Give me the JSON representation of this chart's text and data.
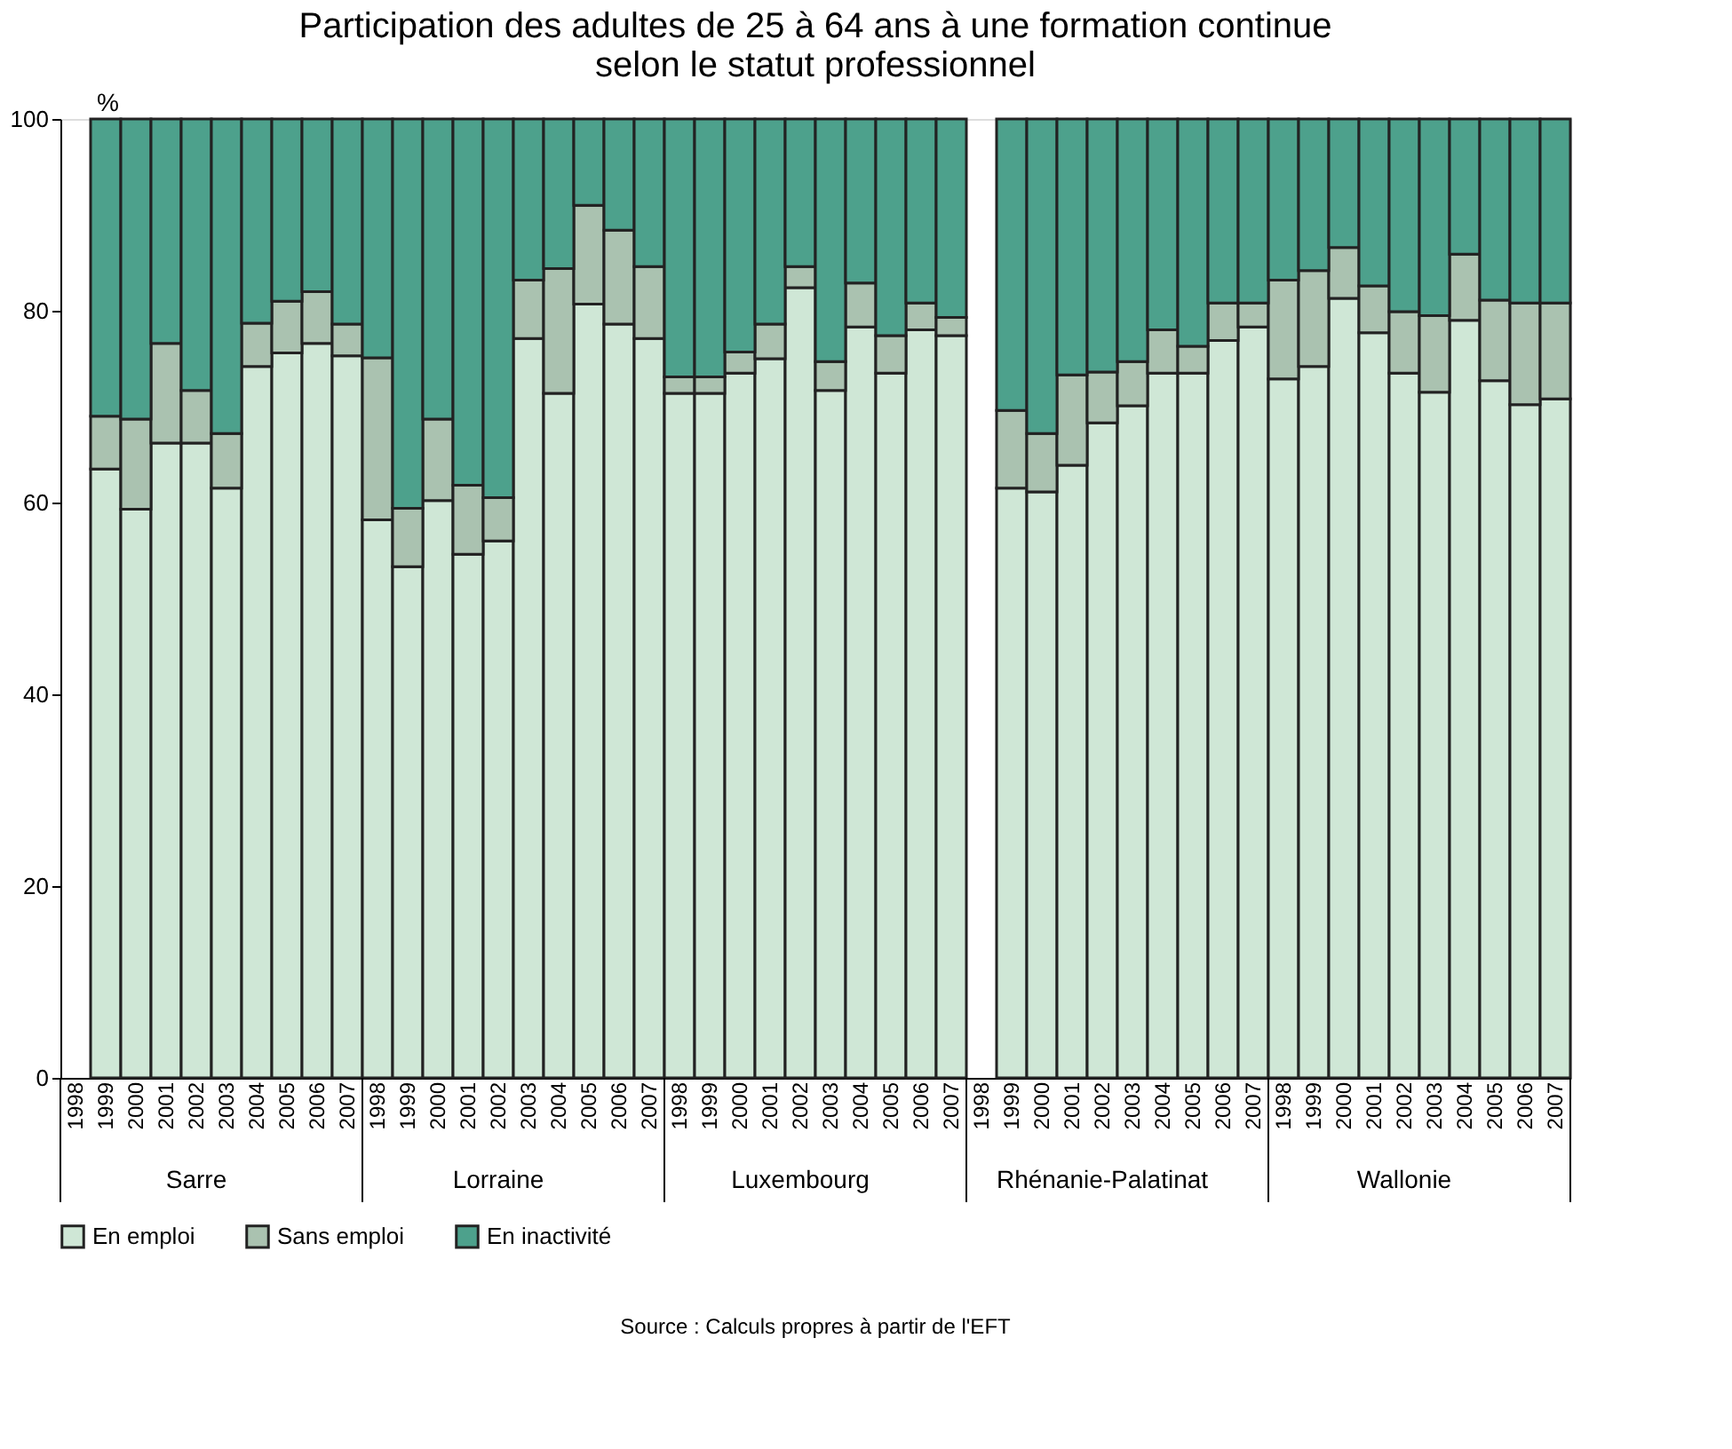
{
  "chart_data": {
    "type": "bar",
    "stacked": true,
    "title": [
      "Participation des adultes de 25 à 64 ans à une formation continue",
      "selon le statut professionnel"
    ],
    "ylabel": "%",
    "categories": [
      "1998",
      "1999",
      "2000",
      "2001",
      "2002",
      "2003",
      "2004",
      "2005",
      "2006",
      "2007",
      "1998",
      "1999",
      "2000",
      "2001",
      "2002",
      "2003",
      "2004",
      "2005",
      "2006",
      "2007",
      "1998",
      "1999",
      "2000",
      "2001",
      "2002",
      "2003",
      "2004",
      "2005",
      "2006",
      "2007",
      "1998",
      "1999",
      "2000",
      "2001",
      "2002",
      "2003",
      "2004",
      "2005",
      "2006",
      "2007",
      "1998",
      "1999",
      "2000",
      "2001",
      "2002",
      "2003",
      "2004",
      "2005",
      "2006",
      "2007"
    ],
    "series": [
      {
        "name": "En emploi",
        "color": "#cfe7d6",
        "values": [
          null,
          63.5,
          59.3,
          66.2,
          66.2,
          61.5,
          74.2,
          75.6,
          76.6,
          75.3,
          58.2,
          53.3,
          60.2,
          54.6,
          56.0,
          77.1,
          71.4,
          80.7,
          78.6,
          77.1,
          71.4,
          71.4,
          73.5,
          75.0,
          82.4,
          71.7,
          78.3,
          73.5,
          78.0,
          77.4,
          null,
          61.5,
          61.1,
          63.9,
          68.3,
          70.1,
          73.5,
          73.5,
          76.9,
          78.3,
          72.9,
          74.2,
          81.3,
          77.7,
          73.5,
          71.5,
          79.0,
          72.7,
          70.2,
          70.8
        ]
      },
      {
        "name": "Sans emploi",
        "color": "#aac2b0",
        "values": [
          null,
          5.5,
          9.4,
          10.4,
          5.5,
          5.7,
          4.5,
          5.4,
          5.4,
          3.3,
          16.9,
          6.1,
          8.5,
          7.2,
          4.5,
          6.1,
          13.0,
          10.3,
          9.8,
          7.5,
          1.7,
          1.7,
          2.2,
          3.6,
          2.2,
          3.0,
          4.6,
          3.9,
          2.8,
          1.9,
          null,
          8.1,
          6.1,
          9.4,
          5.3,
          4.6,
          4.5,
          2.8,
          3.9,
          2.5,
          10.3,
          10.0,
          5.3,
          4.9,
          6.4,
          8.0,
          6.9,
          8.4,
          10.6,
          10.0
        ]
      },
      {
        "name": "En inactivité",
        "color": "#4da18c",
        "values": [
          null,
          31.0,
          31.3,
          23.4,
          28.3,
          32.8,
          21.3,
          19.0,
          18.0,
          21.4,
          24.9,
          40.6,
          31.3,
          38.2,
          39.5,
          16.8,
          15.6,
          9.0,
          11.6,
          15.4,
          26.9,
          26.9,
          24.3,
          21.4,
          15.4,
          25.3,
          17.1,
          22.6,
          19.2,
          20.7,
          null,
          30.4,
          32.8,
          26.7,
          26.4,
          25.3,
          22.0,
          23.7,
          19.2,
          19.2,
          16.8,
          15.8,
          13.4,
          17.4,
          20.1,
          20.5,
          14.1,
          18.9,
          19.2,
          19.2
        ]
      }
    ],
    "ylim": [
      0,
      100
    ],
    "yticks": [
      0,
      20,
      40,
      60,
      80,
      100
    ],
    "grid": false,
    "legend": "bottom left",
    "annotations": [
      "Sarre",
      "Lorraine",
      "Luxembourg",
      "Rhénanie-Palatinat",
      "Wallonie",
      "Source : Calculs propres à partir de l'EFT"
    ]
  }
}
